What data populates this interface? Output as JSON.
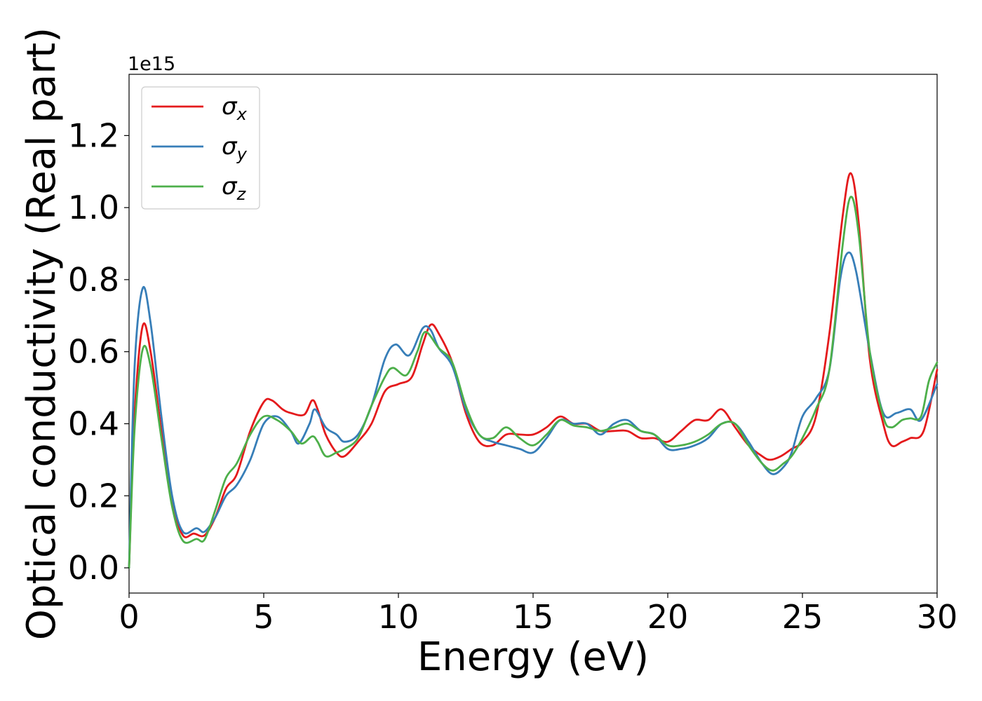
{
  "chart_data": {
    "type": "line",
    "xlabel": "Energy (eV)",
    "ylabel": "Optical conductivity (Real part)",
    "y_offset_label": "1e15",
    "xlim": [
      0,
      30
    ],
    "ylim": [
      -0.07,
      1.37
    ],
    "x_ticks": [
      0,
      5,
      10,
      15,
      20,
      25,
      30
    ],
    "x_tick_labels": [
      "0",
      "5",
      "10",
      "15",
      "20",
      "25",
      "30"
    ],
    "y_ticks": [
      0.0,
      0.2,
      0.4,
      0.6,
      0.8,
      1.0,
      1.2
    ],
    "y_tick_labels": [
      "0.0",
      "0.2",
      "0.4",
      "0.6",
      "0.8",
      "1.0",
      "1.2"
    ],
    "grid": false,
    "legend_position": "top-left",
    "series": [
      {
        "name": "σx",
        "symbol": "σ",
        "subscript": "x",
        "color": "#e41a1c",
        "points": [
          [
            0,
            0.0
          ],
          [
            0.2,
            0.42
          ],
          [
            0.5,
            0.67
          ],
          [
            0.8,
            0.6
          ],
          [
            1.2,
            0.38
          ],
          [
            1.6,
            0.18
          ],
          [
            2.0,
            0.09
          ],
          [
            2.4,
            0.095
          ],
          [
            2.8,
            0.09
          ],
          [
            3.2,
            0.14
          ],
          [
            3.6,
            0.22
          ],
          [
            4.0,
            0.26
          ],
          [
            4.5,
            0.38
          ],
          [
            5.0,
            0.46
          ],
          [
            5.3,
            0.465
          ],
          [
            5.7,
            0.44
          ],
          [
            6.0,
            0.43
          ],
          [
            6.5,
            0.425
          ],
          [
            6.8,
            0.465
          ],
          [
            7.0,
            0.44
          ],
          [
            7.3,
            0.37
          ],
          [
            7.7,
            0.32
          ],
          [
            8.0,
            0.31
          ],
          [
            8.5,
            0.35
          ],
          [
            9.0,
            0.4
          ],
          [
            9.5,
            0.49
          ],
          [
            10.0,
            0.51
          ],
          [
            10.5,
            0.53
          ],
          [
            10.9,
            0.62
          ],
          [
            11.2,
            0.675
          ],
          [
            11.5,
            0.65
          ],
          [
            12.0,
            0.57
          ],
          [
            12.5,
            0.43
          ],
          [
            13.0,
            0.35
          ],
          [
            13.5,
            0.34
          ],
          [
            14.0,
            0.37
          ],
          [
            14.5,
            0.37
          ],
          [
            15.0,
            0.37
          ],
          [
            15.5,
            0.39
          ],
          [
            16.0,
            0.42
          ],
          [
            16.5,
            0.4
          ],
          [
            17.0,
            0.4
          ],
          [
            17.5,
            0.38
          ],
          [
            18.0,
            0.38
          ],
          [
            18.5,
            0.38
          ],
          [
            19.0,
            0.36
          ],
          [
            19.5,
            0.36
          ],
          [
            20.0,
            0.35
          ],
          [
            20.5,
            0.38
          ],
          [
            21.0,
            0.41
          ],
          [
            21.5,
            0.41
          ],
          [
            22.0,
            0.44
          ],
          [
            22.5,
            0.39
          ],
          [
            23.0,
            0.34
          ],
          [
            23.5,
            0.31
          ],
          [
            23.8,
            0.3
          ],
          [
            24.2,
            0.31
          ],
          [
            24.6,
            0.33
          ],
          [
            25.0,
            0.35
          ],
          [
            25.5,
            0.42
          ],
          [
            26.0,
            0.65
          ],
          [
            26.5,
            0.98
          ],
          [
            26.8,
            1.095
          ],
          [
            27.1,
            0.95
          ],
          [
            27.5,
            0.58
          ],
          [
            28.0,
            0.4
          ],
          [
            28.3,
            0.34
          ],
          [
            28.7,
            0.35
          ],
          [
            29.0,
            0.36
          ],
          [
            29.5,
            0.38
          ],
          [
            30.0,
            0.55
          ]
        ]
      },
      {
        "name": "σy",
        "symbol": "σ",
        "subscript": "y",
        "color": "#377eb8",
        "points": [
          [
            0,
            0.0
          ],
          [
            0.2,
            0.55
          ],
          [
            0.5,
            0.775
          ],
          [
            0.8,
            0.68
          ],
          [
            1.2,
            0.42
          ],
          [
            1.6,
            0.2
          ],
          [
            2.0,
            0.1
          ],
          [
            2.5,
            0.11
          ],
          [
            2.8,
            0.1
          ],
          [
            3.2,
            0.14
          ],
          [
            3.6,
            0.2
          ],
          [
            4.0,
            0.23
          ],
          [
            4.5,
            0.3
          ],
          [
            5.0,
            0.4
          ],
          [
            5.5,
            0.42
          ],
          [
            6.0,
            0.38
          ],
          [
            6.3,
            0.345
          ],
          [
            6.7,
            0.4
          ],
          [
            6.9,
            0.44
          ],
          [
            7.3,
            0.39
          ],
          [
            7.7,
            0.37
          ],
          [
            8.0,
            0.35
          ],
          [
            8.5,
            0.37
          ],
          [
            9.0,
            0.45
          ],
          [
            9.5,
            0.58
          ],
          [
            9.9,
            0.62
          ],
          [
            10.4,
            0.59
          ],
          [
            10.9,
            0.665
          ],
          [
            11.2,
            0.66
          ],
          [
            11.5,
            0.61
          ],
          [
            12.0,
            0.56
          ],
          [
            12.5,
            0.44
          ],
          [
            13.0,
            0.37
          ],
          [
            13.5,
            0.35
          ],
          [
            14.0,
            0.34
          ],
          [
            14.5,
            0.33
          ],
          [
            15.0,
            0.32
          ],
          [
            15.5,
            0.36
          ],
          [
            16.0,
            0.41
          ],
          [
            16.5,
            0.4
          ],
          [
            17.0,
            0.4
          ],
          [
            17.5,
            0.37
          ],
          [
            18.0,
            0.4
          ],
          [
            18.5,
            0.41
          ],
          [
            19.0,
            0.38
          ],
          [
            19.5,
            0.37
          ],
          [
            20.0,
            0.33
          ],
          [
            20.5,
            0.33
          ],
          [
            21.0,
            0.34
          ],
          [
            21.5,
            0.36
          ],
          [
            22.0,
            0.4
          ],
          [
            22.5,
            0.4
          ],
          [
            23.0,
            0.35
          ],
          [
            23.5,
            0.29
          ],
          [
            23.9,
            0.26
          ],
          [
            24.3,
            0.28
          ],
          [
            24.6,
            0.32
          ],
          [
            25.0,
            0.42
          ],
          [
            25.5,
            0.47
          ],
          [
            26.0,
            0.55
          ],
          [
            26.4,
            0.8
          ],
          [
            26.7,
            0.875
          ],
          [
            27.0,
            0.82
          ],
          [
            27.5,
            0.6
          ],
          [
            28.0,
            0.43
          ],
          [
            28.5,
            0.43
          ],
          [
            29.0,
            0.44
          ],
          [
            29.4,
            0.41
          ],
          [
            30.0,
            0.51
          ]
        ]
      },
      {
        "name": "σz",
        "symbol": "σ",
        "subscript": "z",
        "color": "#4daf4a",
        "points": [
          [
            0,
            0.0
          ],
          [
            0.2,
            0.38
          ],
          [
            0.5,
            0.605
          ],
          [
            0.8,
            0.56
          ],
          [
            1.2,
            0.36
          ],
          [
            1.6,
            0.17
          ],
          [
            2.0,
            0.075
          ],
          [
            2.5,
            0.08
          ],
          [
            2.8,
            0.078
          ],
          [
            3.2,
            0.16
          ],
          [
            3.6,
            0.25
          ],
          [
            4.0,
            0.29
          ],
          [
            4.5,
            0.37
          ],
          [
            5.0,
            0.42
          ],
          [
            5.5,
            0.41
          ],
          [
            6.0,
            0.38
          ],
          [
            6.4,
            0.345
          ],
          [
            6.8,
            0.365
          ],
          [
            7.0,
            0.35
          ],
          [
            7.3,
            0.31
          ],
          [
            7.7,
            0.32
          ],
          [
            8.0,
            0.33
          ],
          [
            8.5,
            0.36
          ],
          [
            9.0,
            0.45
          ],
          [
            9.5,
            0.53
          ],
          [
            9.8,
            0.555
          ],
          [
            10.3,
            0.535
          ],
          [
            10.7,
            0.6
          ],
          [
            11.0,
            0.655
          ],
          [
            11.5,
            0.61
          ],
          [
            12.0,
            0.57
          ],
          [
            12.5,
            0.45
          ],
          [
            13.0,
            0.37
          ],
          [
            13.5,
            0.36
          ],
          [
            14.0,
            0.39
          ],
          [
            14.5,
            0.36
          ],
          [
            15.0,
            0.34
          ],
          [
            15.5,
            0.37
          ],
          [
            16.0,
            0.41
          ],
          [
            16.5,
            0.395
          ],
          [
            17.0,
            0.39
          ],
          [
            17.5,
            0.38
          ],
          [
            18.0,
            0.39
          ],
          [
            18.5,
            0.4
          ],
          [
            19.0,
            0.38
          ],
          [
            19.5,
            0.37
          ],
          [
            20.0,
            0.34
          ],
          [
            20.5,
            0.34
          ],
          [
            21.0,
            0.35
          ],
          [
            21.5,
            0.37
          ],
          [
            22.0,
            0.4
          ],
          [
            22.5,
            0.4
          ],
          [
            23.0,
            0.34
          ],
          [
            23.5,
            0.29
          ],
          [
            23.9,
            0.27
          ],
          [
            24.3,
            0.29
          ],
          [
            24.6,
            0.31
          ],
          [
            25.0,
            0.36
          ],
          [
            25.5,
            0.44
          ],
          [
            26.0,
            0.55
          ],
          [
            26.5,
            0.9
          ],
          [
            26.8,
            1.03
          ],
          [
            27.1,
            0.92
          ],
          [
            27.5,
            0.6
          ],
          [
            28.0,
            0.42
          ],
          [
            28.3,
            0.39
          ],
          [
            28.7,
            0.41
          ],
          [
            29.0,
            0.415
          ],
          [
            29.4,
            0.42
          ],
          [
            29.7,
            0.52
          ],
          [
            30.0,
            0.57
          ]
        ]
      }
    ]
  }
}
